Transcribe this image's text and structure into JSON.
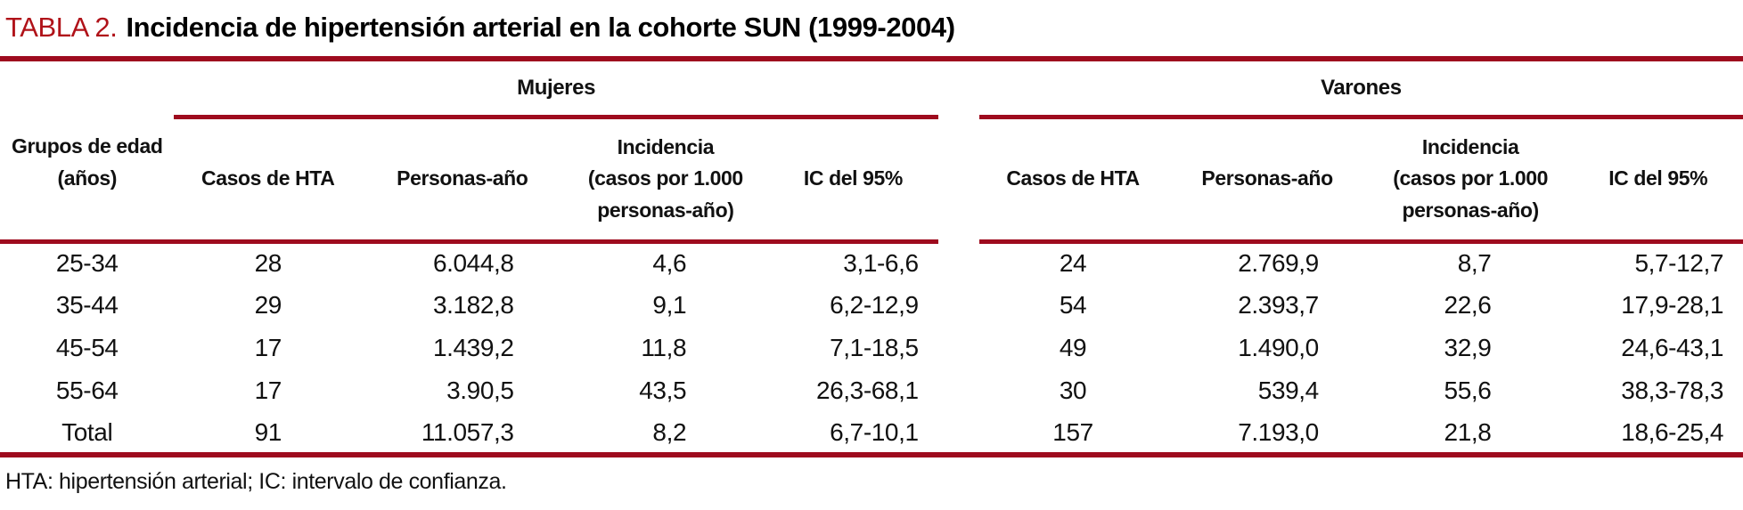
{
  "colors": {
    "rule_red": "#9e0b1e",
    "title_red": "#b01219"
  },
  "title": {
    "label": "TABLA 2.",
    "text": "Incidencia de hipertensión arterial en la cohorte SUN (1999-2004)"
  },
  "table": {
    "groups": {
      "mujeres": "Mujeres",
      "varones": "Varones"
    },
    "stub_header": {
      "line1": "Grupos de edad",
      "line2": "(años)"
    },
    "columns": {
      "casos": "Casos de HTA",
      "personas": "Personas-año",
      "incidencia": [
        "Incidencia",
        "(casos por 1.000",
        "personas-año)"
      ],
      "ic": "IC del 95%"
    },
    "rows": [
      {
        "edad": "25-34",
        "m": [
          "28",
          "6.044,8",
          "4,6",
          "3,1-6,6"
        ],
        "v": [
          "24",
          "2.769,9",
          "8,7",
          "5,7-12,7"
        ]
      },
      {
        "edad": "35-44",
        "m": [
          "29",
          "3.182,8",
          "9,1",
          "6,2-12,9"
        ],
        "v": [
          "54",
          "2.393,7",
          "22,6",
          "17,9-28,1"
        ]
      },
      {
        "edad": "45-54",
        "m": [
          "17",
          "1.439,2",
          "11,8",
          "7,1-18,5"
        ],
        "v": [
          "49",
          "1.490,0",
          "32,9",
          "24,6-43,1"
        ]
      },
      {
        "edad": "55-64",
        "m": [
          "17",
          "3.90,5",
          "43,5",
          "26,3-68,1"
        ],
        "v": [
          "30",
          "539,4",
          "55,6",
          "38,3-78,3"
        ]
      },
      {
        "edad": "Total",
        "m": [
          "91",
          "11.057,3",
          "8,2",
          "6,7-10,1"
        ],
        "v": [
          "157",
          "7.193,0",
          "21,8",
          "18,6-25,4"
        ]
      }
    ]
  },
  "footnote": "HTA: hipertensión arterial; IC: intervalo de confianza."
}
